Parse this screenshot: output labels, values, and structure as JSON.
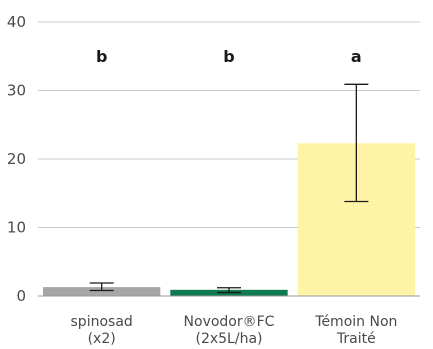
{
  "chart_data": {
    "type": "bar",
    "categories": [
      [
        "spinosad",
        "(x2)"
      ],
      [
        "Novodor®FC",
        "(2x5L/ha)"
      ],
      [
        "Témoin Non",
        "Traité"
      ]
    ],
    "values": [
      1.3,
      0.9,
      22.3
    ],
    "error_low": [
      0.8,
      0.5,
      13.8
    ],
    "error_high": [
      1.9,
      1.2,
      30.9
    ],
    "significance_letters": [
      "b",
      "b",
      "a"
    ],
    "bar_colors": [
      "#a6a6a6",
      "#0d7a4f",
      "#fff3a6"
    ],
    "ylim": [
      0,
      40
    ],
    "yticks": [
      "0",
      "10",
      "20",
      "30",
      "40"
    ],
    "grid": true,
    "title": "",
    "xlabel": "",
    "ylabel": ""
  }
}
